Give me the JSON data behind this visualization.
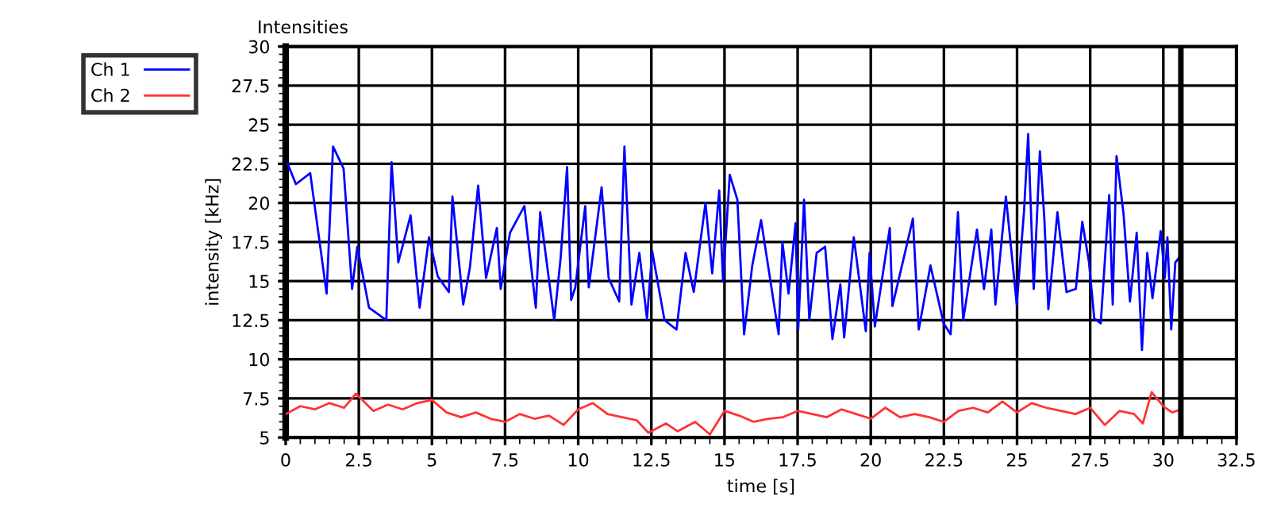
{
  "chart_data": {
    "type": "line",
    "title": "Intensities",
    "xlabel": "time [s]",
    "ylabel": "intensity [kHz]",
    "series": [
      {
        "name": "Ch 1",
        "color": "#0000ff",
        "x": [
          0.07,
          0.35,
          0.84,
          1.4,
          1.62,
          1.98,
          2.27,
          2.45,
          2.85,
          3.44,
          3.62,
          3.85,
          4.27,
          4.58,
          4.9,
          5.2,
          5.58,
          5.7,
          6.07,
          6.3,
          6.58,
          6.85,
          7.22,
          7.35,
          7.67,
          8.16,
          8.55,
          8.7,
          9.18,
          9.4,
          9.62,
          9.76,
          9.9,
          10.24,
          10.36,
          10.8,
          11.04,
          11.4,
          11.58,
          11.82,
          12.09,
          12.35,
          12.53,
          12.95,
          13.36,
          13.67,
          13.95,
          14.35,
          14.58,
          14.82,
          14.95,
          15.18,
          15.44,
          15.67,
          15.95,
          16.25,
          16.85,
          16.98,
          17.19,
          17.43,
          17.52,
          17.72,
          17.9,
          18.15,
          18.44,
          18.69,
          18.96,
          19.09,
          19.42,
          19.83,
          19.96,
          20.14,
          20.65,
          20.74,
          21.13,
          21.44,
          21.64,
          22.04,
          22.49,
          22.73,
          22.98,
          23.16,
          23.63,
          23.87,
          24.12,
          24.26,
          24.62,
          24.99,
          25.24,
          25.38,
          25.57,
          25.78,
          25.93,
          26.07,
          26.38,
          26.69,
          27.01,
          27.23,
          27.46,
          27.64,
          27.86,
          28.15,
          28.27,
          28.4,
          28.64,
          28.86,
          29.09,
          29.27,
          29.45,
          29.63,
          29.91,
          30.05,
          30.14,
          30.27,
          30.41,
          30.54,
          30.6
        ],
        "values": [
          22.5,
          21.2,
          21.9,
          14.2,
          23.6,
          22.2,
          14.5,
          17.2,
          13.3,
          12.5,
          22.6,
          16.2,
          19.2,
          13.3,
          17.8,
          15.3,
          14.3,
          20.4,
          13.5,
          15.9,
          21.1,
          15.2,
          18.4,
          14.5,
          18.1,
          19.8,
          13.3,
          19.4,
          12.5,
          16.5,
          22.3,
          13.8,
          14.6,
          19.8,
          14.6,
          21.0,
          15.2,
          13.7,
          23.6,
          13.5,
          16.8,
          12.6,
          16.9,
          12.5,
          11.9,
          16.8,
          14.3,
          20.0,
          15.5,
          20.8,
          15.0,
          21.8,
          20.2,
          11.6,
          16.0,
          18.9,
          11.6,
          17.5,
          14.2,
          18.7,
          11.9,
          20.2,
          12.5,
          16.8,
          17.2,
          11.3,
          14.8,
          11.4,
          17.8,
          11.8,
          16.8,
          12.1,
          18.4,
          13.4,
          16.5,
          19.0,
          11.9,
          16.0,
          12.3,
          11.6,
          19.4,
          12.5,
          18.3,
          14.5,
          18.3,
          13.5,
          20.4,
          13.5,
          19.5,
          24.4,
          14.5,
          23.3,
          19.1,
          13.2,
          19.4,
          14.3,
          14.5,
          18.8,
          16.2,
          12.6,
          12.3,
          20.5,
          13.5,
          23.0,
          19.3,
          13.7,
          18.1,
          10.6,
          16.8,
          13.9,
          18.2,
          15.2,
          17.8,
          11.9,
          16.2,
          16.5,
          15.3
        ]
      },
      {
        "name": "Ch 2",
        "color": "#ff3333",
        "x": [
          0,
          0.5,
          1,
          1.5,
          2,
          2.4,
          3,
          3.5,
          4,
          4.5,
          5,
          5.5,
          6,
          6.5,
          7,
          7.5,
          8,
          8.5,
          9,
          9.5,
          10,
          10.5,
          11,
          11.5,
          12,
          12.4,
          13,
          13.4,
          14,
          14.5,
          15,
          15.5,
          16,
          16.5,
          17,
          17.5,
          18,
          18.5,
          19,
          19.5,
          20,
          20.5,
          21,
          21.5,
          22,
          22.5,
          23,
          23.5,
          24,
          24.5,
          25,
          25.5,
          26,
          26.5,
          27,
          27.5,
          28,
          28.5,
          29,
          29.3,
          29.6,
          30,
          30.3,
          30.6
        ],
        "values": [
          6.5,
          7.0,
          6.8,
          7.2,
          6.9,
          7.8,
          6.7,
          7.1,
          6.8,
          7.2,
          7.4,
          6.6,
          6.3,
          6.6,
          6.2,
          6.0,
          6.5,
          6.2,
          6.4,
          5.8,
          6.8,
          7.2,
          6.5,
          6.3,
          6.1,
          5.3,
          5.9,
          5.4,
          6.0,
          5.2,
          6.7,
          6.4,
          6.0,
          6.2,
          6.3,
          6.7,
          6.5,
          6.3,
          6.8,
          6.5,
          6.2,
          6.9,
          6.3,
          6.5,
          6.3,
          6.0,
          6.7,
          6.9,
          6.6,
          7.3,
          6.6,
          7.2,
          6.9,
          6.7,
          6.5,
          6.9,
          5.8,
          6.7,
          6.5,
          5.9,
          7.9,
          7.0,
          6.6,
          6.8
        ]
      }
    ],
    "xlim": [
      0,
      32.5
    ],
    "xticks": [
      0,
      2.5,
      5,
      7.5,
      10,
      12.5,
      15,
      17.5,
      20,
      22.5,
      25,
      27.5,
      30,
      32.5
    ],
    "ylim": [
      5,
      30
    ],
    "yticks": [
      5,
      7.5,
      10,
      12.5,
      15,
      17.5,
      20,
      22.5,
      25,
      27.5,
      30
    ],
    "ref_lines": [
      {
        "axis": "x",
        "value": 30.6,
        "color": "#000000"
      }
    ],
    "grid": true,
    "legend": "top left",
    "marker": "none",
    "line_style": "solid"
  }
}
